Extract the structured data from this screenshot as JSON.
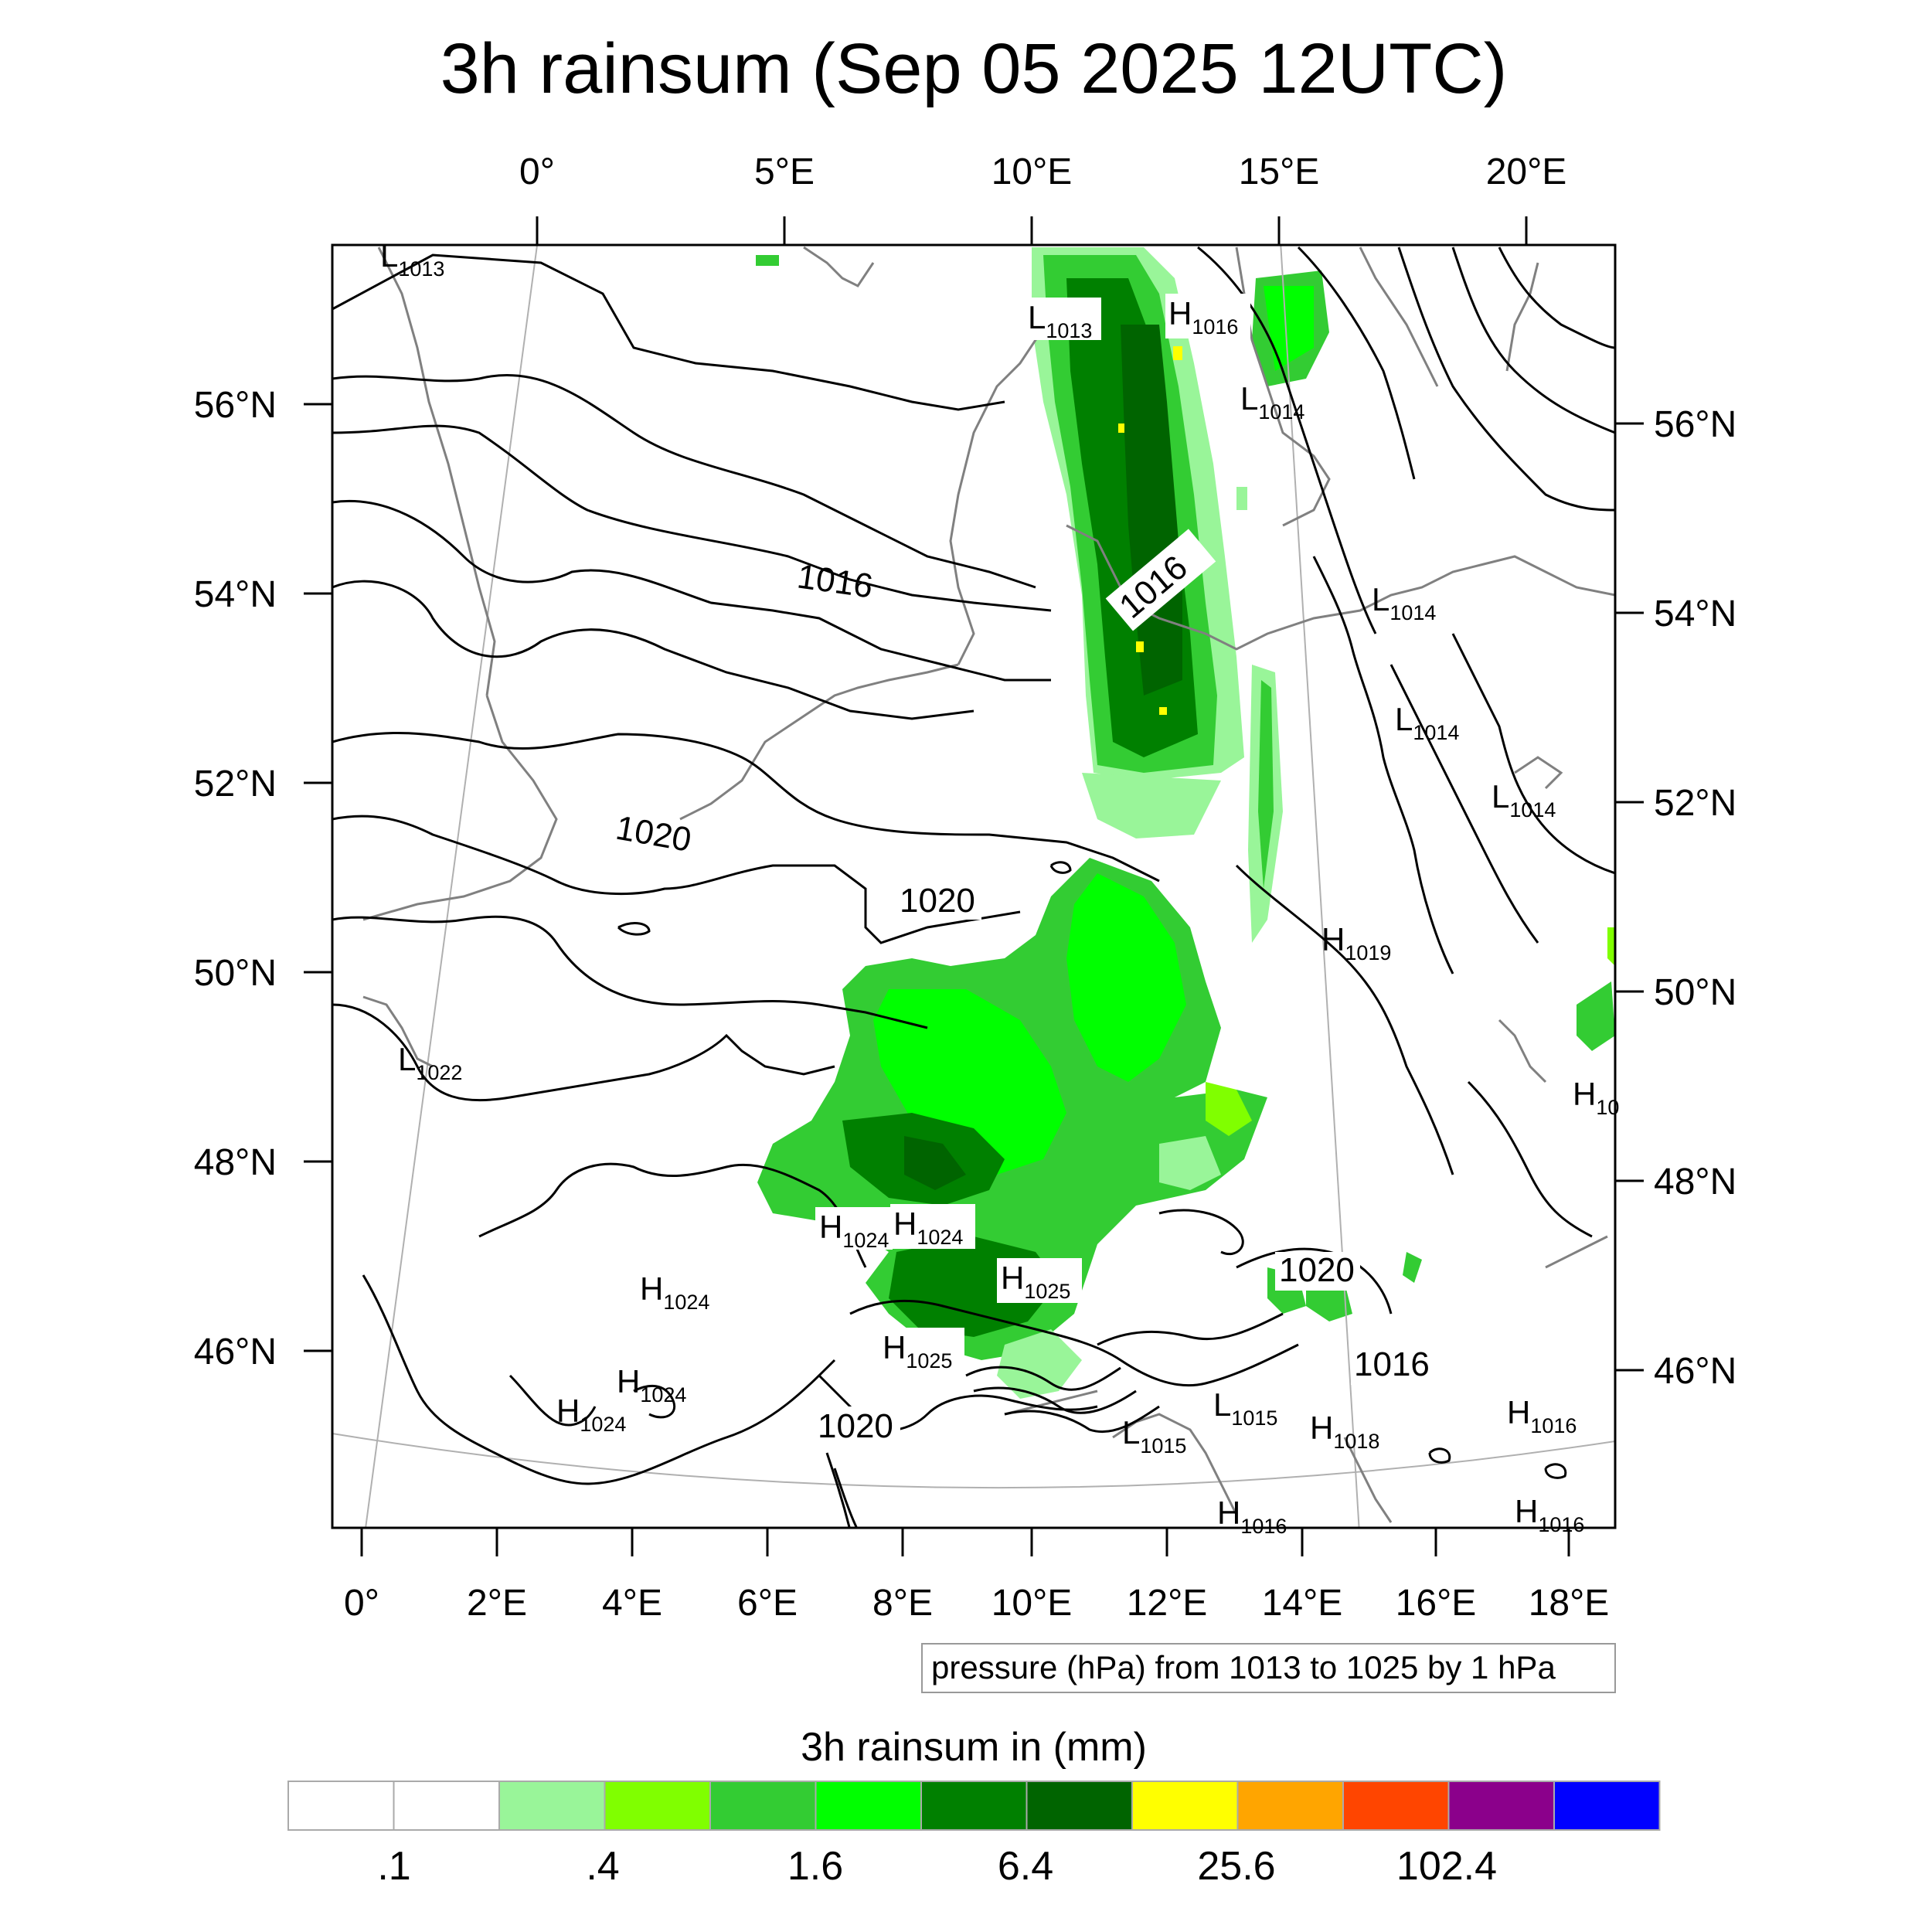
{
  "title": "3h rainsum (Sep 05 2025 12UTC)",
  "top_lon_labels": [
    "0°",
    "5°E",
    "10°E",
    "15°E",
    "20°E"
  ],
  "bottom_lon_labels": [
    "0°",
    "2°E",
    "4°E",
    "6°E",
    "8°E",
    "10°E",
    "12°E",
    "14°E",
    "16°E",
    "18°E"
  ],
  "left_lat_labels": [
    "56°N",
    "54°N",
    "52°N",
    "50°N",
    "48°N",
    "46°N"
  ],
  "right_lat_labels": [
    "56°N",
    "54°N",
    "52°N",
    "50°N",
    "48°N",
    "46°N"
  ],
  "isobar_labels": [
    "1016",
    "1016",
    "1020",
    "1020",
    "1020",
    "1020",
    "1016"
  ],
  "pressure_centers": [
    {
      "type": "L",
      "value": "1013"
    },
    {
      "type": "L",
      "value": "1013"
    },
    {
      "type": "H",
      "value": "1016"
    },
    {
      "type": "L",
      "value": "1014"
    },
    {
      "type": "L",
      "value": "1014"
    },
    {
      "type": "L",
      "value": "1014"
    },
    {
      "type": "L",
      "value": "1014"
    },
    {
      "type": "H",
      "value": "1019"
    },
    {
      "type": "L",
      "value": "1022"
    },
    {
      "type": "H",
      "value": "10"
    },
    {
      "type": "H",
      "value": "1024"
    },
    {
      "type": "H",
      "value": "1024"
    },
    {
      "type": "H",
      "value": "1024"
    },
    {
      "type": "H",
      "value": "1024"
    },
    {
      "type": "H",
      "value": "1024"
    },
    {
      "type": "H",
      "value": "1025"
    },
    {
      "type": "H",
      "value": "1025"
    },
    {
      "type": "L",
      "value": "1015"
    },
    {
      "type": "L",
      "value": "1015"
    },
    {
      "type": "H",
      "value": "1018"
    },
    {
      "type": "H",
      "value": "1016"
    },
    {
      "type": "H",
      "value": "1016"
    },
    {
      "type": "H",
      "value": "1016"
    }
  ],
  "contour_info": "pressure (hPa) from 1013 to 1025 by 1 hPa",
  "colorbar": {
    "title": "3h rainsum in (mm)",
    "colors": [
      "#ffffff",
      "#ffffff",
      "#99f599",
      "#80ff00",
      "#33cc33",
      "#00ff00",
      "#008000",
      "#006400",
      "#ffff00",
      "#ffa500",
      "#ff4500",
      "#8b008b",
      "#0000ff"
    ],
    "labels": [
      ".1",
      ".4",
      "1.6",
      "6.4",
      "25.6",
      "102.4"
    ]
  },
  "colors": {
    "contour": "#000000",
    "coast": "#808080",
    "grid": "#b0b0b0"
  }
}
